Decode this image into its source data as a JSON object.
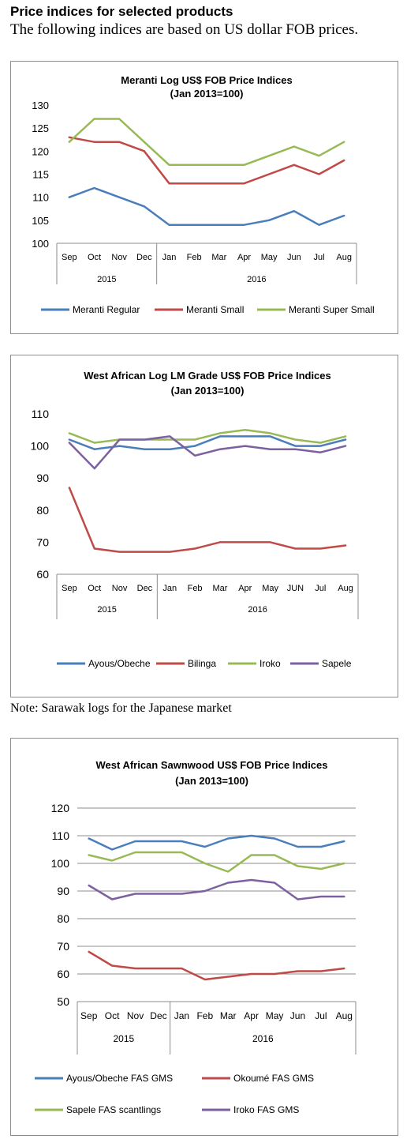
{
  "page": {
    "heading": "Price indices for selected products",
    "intro": "The following indices are based on US dollar FOB prices.",
    "note": "Note: Sarawak logs for the Japanese market"
  },
  "chart_data": [
    {
      "type": "line",
      "title": "Meranti Log US$ FOB Price Indices",
      "subtitle": "(Jan 2013=100)",
      "categories": [
        "Sep",
        "Oct",
        "Nov",
        "Dec",
        "Jan",
        "Feb",
        "Mar",
        "Apr",
        "May",
        "Jun",
        "Jul",
        "Aug"
      ],
      "year_groups": [
        {
          "label": "2015",
          "count": 4
        },
        {
          "label": "2016",
          "count": 8
        }
      ],
      "ylim": [
        100,
        130
      ],
      "yticks": [
        100,
        105,
        110,
        115,
        120,
        125,
        130
      ],
      "grid": false,
      "legend": "bottom",
      "series": [
        {
          "name": "Meranti Regular",
          "color": "#4a7ebb",
          "values": [
            110,
            112,
            110,
            108,
            104,
            104,
            104,
            104,
            105,
            107,
            104,
            106
          ]
        },
        {
          "name": "Meranti Small",
          "color": "#be4b48",
          "values": [
            123,
            122,
            122,
            120,
            113,
            113,
            113,
            113,
            115,
            117,
            115,
            118
          ]
        },
        {
          "name": "Meranti Super Small",
          "color": "#98b954",
          "values": [
            122,
            127,
            127,
            122,
            117,
            117,
            117,
            117,
            119,
            121,
            119,
            122
          ]
        }
      ]
    },
    {
      "type": "line",
      "title": "West African Log LM Grade US$ FOB Price Indices",
      "subtitle": "(Jan 2013=100)",
      "categories": [
        "Sep",
        "Oct",
        "Nov",
        "Dec",
        "Jan",
        "Feb",
        "Mar",
        "Apr",
        "May",
        "JUN",
        "Jul",
        "Aug"
      ],
      "year_groups": [
        {
          "label": "2015",
          "count": 4
        },
        {
          "label": "2016",
          "count": 8
        }
      ],
      "ylim": [
        60,
        110
      ],
      "yticks": [
        60,
        70,
        80,
        90,
        100,
        110
      ],
      "grid": false,
      "legend": "bottom",
      "series": [
        {
          "name": "Ayous/Obeche",
          "color": "#4a7ebb",
          "values": [
            102,
            99,
            100,
            99,
            99,
            100,
            103,
            103,
            103,
            100,
            100,
            102
          ]
        },
        {
          "name": "Bilinga",
          "color": "#be4b48",
          "values": [
            87,
            68,
            67,
            67,
            67,
            68,
            70,
            70,
            70,
            68,
            68,
            69
          ]
        },
        {
          "name": "Iroko",
          "color": "#98b954",
          "values": [
            104,
            101,
            102,
            102,
            102,
            102,
            104,
            105,
            104,
            102,
            101,
            103
          ]
        },
        {
          "name": "Sapele",
          "color": "#7d60a0",
          "values": [
            101,
            93,
            102,
            102,
            103,
            97,
            99,
            100,
            99,
            99,
            98,
            100
          ]
        }
      ]
    },
    {
      "type": "line",
      "title": "West African Sawnwood US$ FOB Price Indices",
      "subtitle": "(Jan 2013=100)",
      "categories": [
        "Sep",
        "Oct",
        "Nov",
        "Dec",
        "Jan",
        "Feb",
        "Mar",
        "Apr",
        "May",
        "Jun",
        "Jul",
        "Aug"
      ],
      "year_groups": [
        {
          "label": "2015",
          "count": 4
        },
        {
          "label": "2016",
          "count": 8
        }
      ],
      "ylim": [
        50,
        120
      ],
      "yticks": [
        50,
        60,
        70,
        80,
        90,
        100,
        110,
        120
      ],
      "grid": true,
      "legend": "bottom",
      "series": [
        {
          "name": "Ayous/Obeche  FAS GMS",
          "color": "#4a7ebb",
          "values": [
            109,
            105,
            108,
            108,
            108,
            106,
            109,
            110,
            109,
            106,
            106,
            108
          ]
        },
        {
          "name": "Okoumé  FAS GMS",
          "color": "#be4b48",
          "values": [
            68,
            63,
            62,
            62,
            62,
            58,
            59,
            60,
            60,
            61,
            61,
            62
          ]
        },
        {
          "name": "Sapele  FAS scantlings",
          "color": "#98b954",
          "values": [
            103,
            101,
            104,
            104,
            104,
            100,
            97,
            103,
            103,
            99,
            98,
            100
          ]
        },
        {
          "name": "Iroko  FAS GMS",
          "color": "#7d60a0",
          "values": [
            92,
            87,
            89,
            89,
            89,
            90,
            93,
            94,
            93,
            87,
            88,
            88
          ]
        }
      ]
    }
  ]
}
